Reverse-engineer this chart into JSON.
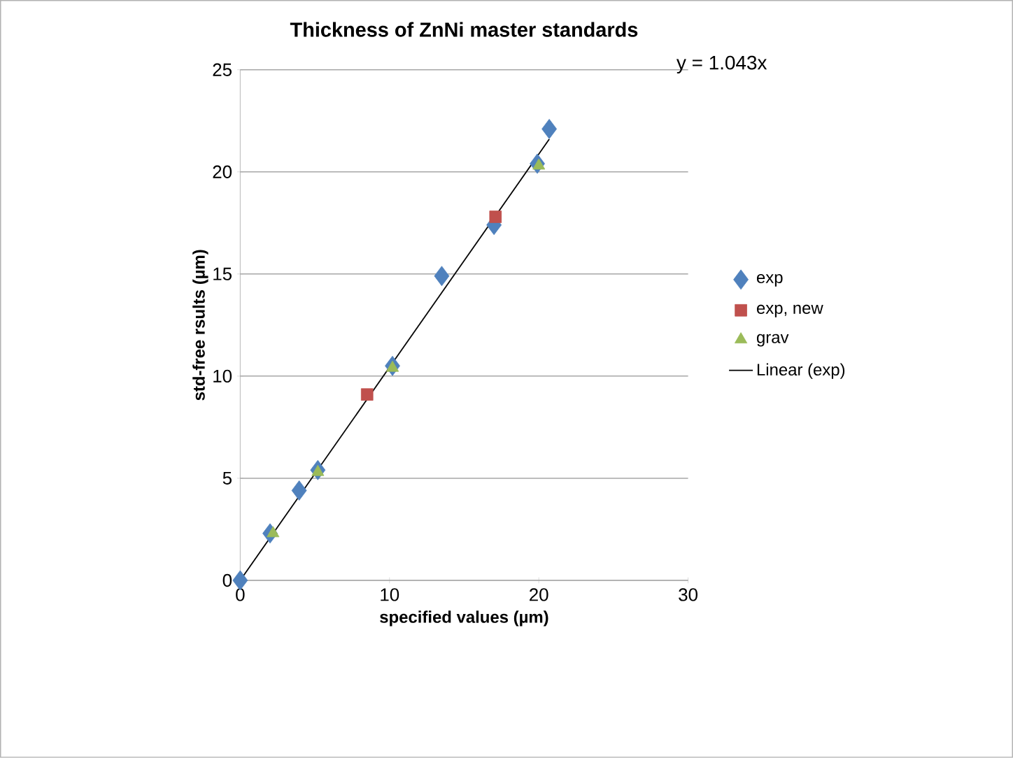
{
  "chart_data": {
    "type": "scatter",
    "title": "Thickness of ZnNi master standards",
    "xlabel": "specified values (µm)",
    "ylabel": "std-free rsults (µm)",
    "xlim": [
      0,
      30
    ],
    "ylim": [
      0,
      25
    ],
    "xticks": [
      0,
      10,
      20,
      30
    ],
    "yticks": [
      0,
      5,
      10,
      15,
      20,
      25
    ],
    "grid": "y",
    "legend": "right",
    "annotations": [
      "y = 1.043x"
    ],
    "series": [
      {
        "name": "exp",
        "color": "#4f81bd",
        "marker": "diamond",
        "x": [
          0,
          2.0,
          3.95,
          5.2,
          10.2,
          13.5,
          17.0,
          19.9,
          20.7
        ],
        "values": [
          0,
          2.3,
          4.4,
          5.4,
          10.5,
          14.9,
          17.4,
          20.4,
          22.1
        ]
      },
      {
        "name": "exp, new",
        "color": "#c0504d",
        "marker": "square",
        "x": [
          8.5,
          17.1
        ],
        "values": [
          9.1,
          17.8
        ]
      },
      {
        "name": "grav",
        "color": "#9bbb59",
        "marker": "triangle",
        "x": [
          2.2,
          5.2,
          10.2,
          20.0
        ],
        "values": [
          2.3,
          5.3,
          10.4,
          20.3
        ]
      },
      {
        "name": "Linear (exp)",
        "type": "line",
        "color": "#000000",
        "marker": "none",
        "x": [
          0,
          20.7
        ],
        "values": [
          0,
          21.6
        ]
      }
    ]
  }
}
